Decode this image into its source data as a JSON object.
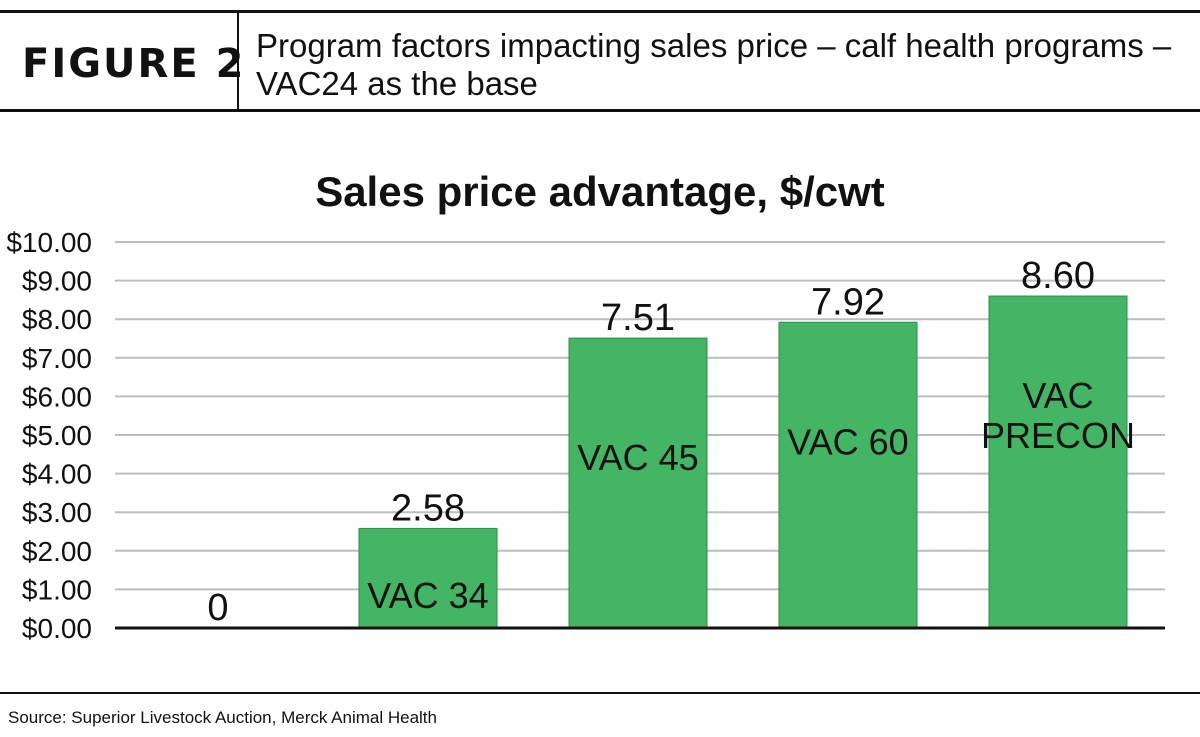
{
  "header": {
    "figure_label": "FIGURE 2",
    "title": "Program factors impacting sales price – calf health programs – VAC24 as the base"
  },
  "footer": {
    "source": "Source: Superior Livestock Auction, Merck Animal Health"
  },
  "colors": {
    "bar": "#43b564",
    "grid": "#bdbdbd",
    "axis": "#111111"
  },
  "chart_data": {
    "type": "bar",
    "title": "Sales price advantage, $/cwt",
    "xlabel": "",
    "ylabel": "",
    "ylim": [
      0,
      10
    ],
    "grid": true,
    "y_ticks": [
      "$0.00",
      "$1.00",
      "$2.00",
      "$3.00",
      "$4.00",
      "$5.00",
      "$6.00",
      "$7.00",
      "$8.00",
      "$9.00",
      "$10.00"
    ],
    "categories": [
      "",
      "VAC 34",
      "VAC 45",
      "VAC 60",
      "VAC PRECON"
    ],
    "values": [
      0,
      2.58,
      7.51,
      7.92,
      8.6
    ],
    "value_labels": [
      "0",
      "2.58",
      "7.51",
      "7.92",
      "8.60"
    ]
  }
}
